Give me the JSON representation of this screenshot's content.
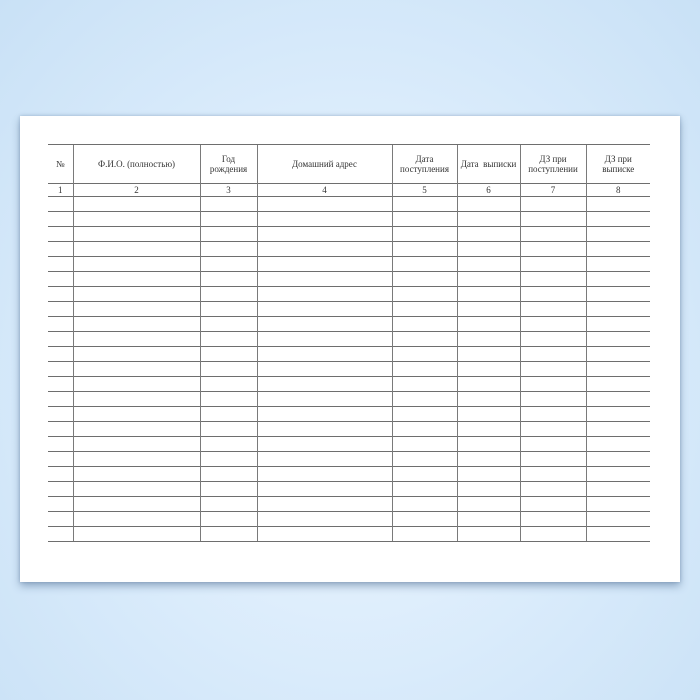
{
  "form": {
    "headers": [
      "№",
      "Ф.И.О. (полностью)",
      "Год рождения",
      "Домашний адрес",
      "Дата поступления",
      "Дата  выписки",
      "ДЗ при поступлении",
      "ДЗ при выписке"
    ],
    "column_numbers": [
      "1",
      "2",
      "3",
      "4",
      "5",
      "6",
      "7",
      "8"
    ],
    "empty_rows": 23
  },
  "colors": {
    "background": "#d9ebfb",
    "paper": "#ffffff",
    "lines": "#6e6e6e"
  }
}
